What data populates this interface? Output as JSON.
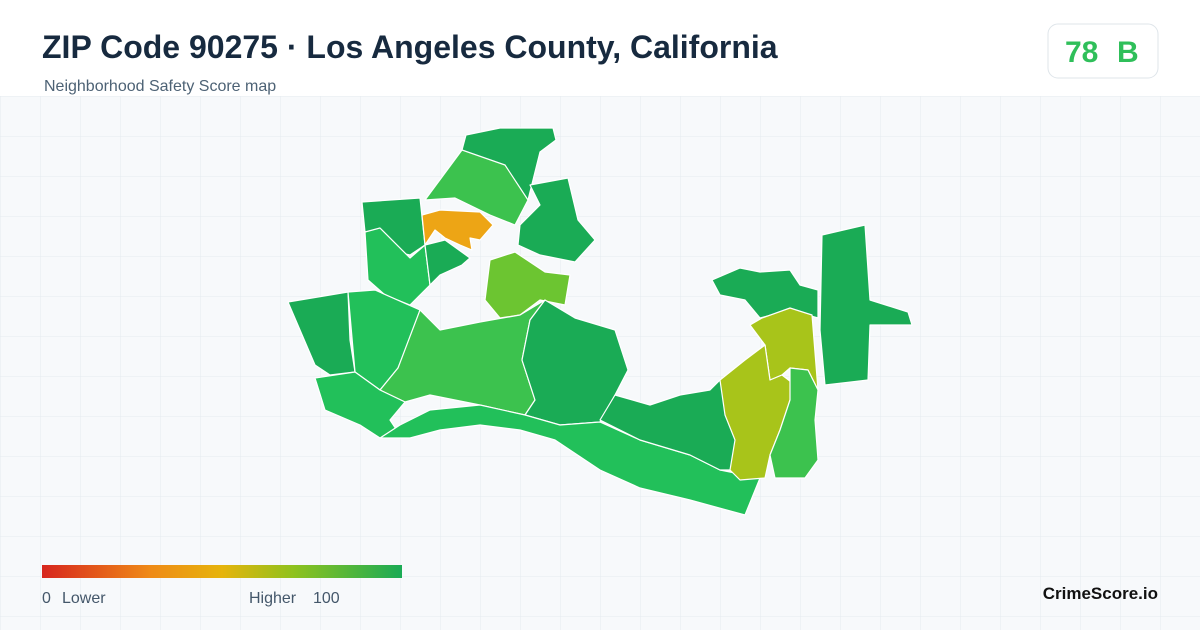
{
  "header": {
    "title": "ZIP Code 90275 · Los Angeles County, California",
    "subtitle": "Neighborhood Safety Score map"
  },
  "score": {
    "value": 78,
    "grade": "B"
  },
  "legend": {
    "min": 0,
    "min_label": "Lower",
    "max_label": "Higher",
    "max": 100
  },
  "brand": "CrimeScore.io"
}
